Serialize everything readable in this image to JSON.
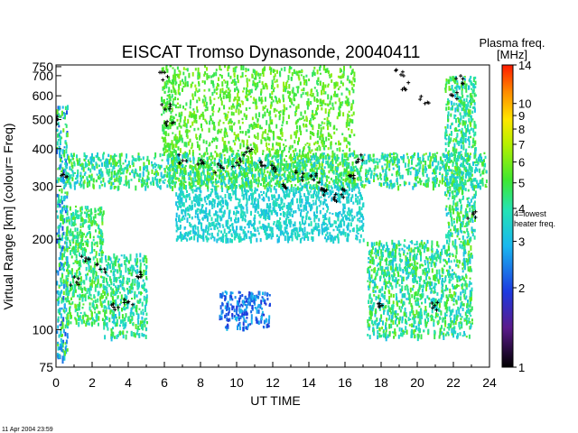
{
  "chart_data": {
    "type": "heatmap",
    "title": "EISCAT Tromso Dynasonde,  20040411",
    "xlabel": "UT TIME",
    "ylabel": "Virtual Range [km]   (colour= Freq)",
    "x_ticks": [
      0,
      2,
      4,
      6,
      8,
      10,
      12,
      14,
      16,
      18,
      20,
      22,
      24
    ],
    "xlim": [
      0,
      24
    ],
    "y_scale": "log",
    "ylim": [
      75,
      760
    ],
    "y_ticks": [
      75,
      100,
      200,
      300,
      400,
      500,
      600,
      700,
      750
    ],
    "colorbar": {
      "title_line1": "Plasma freq.",
      "title_line2": "[MHz]",
      "scale": "log",
      "range": [
        1,
        14
      ],
      "ticks": [
        1,
        2,
        3,
        4,
        5,
        6,
        7,
        8,
        9,
        10,
        14
      ],
      "annotation_line1": "4=lowest",
      "annotation_line2": "heater freq."
    },
    "grid": false,
    "echo_regions": [
      {
        "x": [
          0.0,
          0.6
        ],
        "y": [
          80,
          560
        ],
        "freq": [
          2.0,
          6.0
        ]
      },
      {
        "x": [
          0.5,
          2.6
        ],
        "y": [
          105,
          260
        ],
        "freq": [
          3.5,
          6.0
        ]
      },
      {
        "x": [
          2.6,
          5.0
        ],
        "y": [
          95,
          180
        ],
        "freq": [
          3.0,
          5.5
        ]
      },
      {
        "x": [
          0.4,
          6.6
        ],
        "y": [
          300,
          390
        ],
        "freq": [
          3.0,
          6.0
        ]
      },
      {
        "x": [
          5.8,
          6.6
        ],
        "y": [
          380,
          760
        ],
        "freq": [
          4.5,
          6.0
        ]
      },
      {
        "x": [
          6.6,
          16.5
        ],
        "y": [
          300,
          760
        ],
        "freq": [
          4.5,
          6.5
        ]
      },
      {
        "x": [
          6.6,
          17.0
        ],
        "y": [
          200,
          300
        ],
        "freq": [
          3.0,
          4.0
        ]
      },
      {
        "x": [
          6.2,
          23.8
        ],
        "y": [
          300,
          390
        ],
        "freq": [
          3.0,
          6.0
        ]
      },
      {
        "x": [
          9.0,
          11.8
        ],
        "y": [
          102,
          135
        ],
        "freq": [
          1.8,
          3.0
        ]
      },
      {
        "x": [
          17.2,
          23.0
        ],
        "y": [
          95,
          200
        ],
        "freq": [
          3.0,
          6.0
        ]
      },
      {
        "x": [
          21.5,
          23.2
        ],
        "y": [
          200,
          700
        ],
        "freq": [
          3.0,
          6.0
        ]
      }
    ],
    "trace_points": [
      [
        0.1,
        500
      ],
      [
        0.4,
        330
      ],
      [
        1.0,
        145
      ],
      [
        1.6,
        170
      ],
      [
        2.5,
        160
      ],
      [
        3.3,
        120
      ],
      [
        4.0,
        125
      ],
      [
        4.6,
        150
      ],
      [
        6.0,
        700
      ],
      [
        6.1,
        560
      ],
      [
        6.3,
        480
      ],
      [
        7.0,
        370
      ],
      [
        8.0,
        360
      ],
      [
        9.0,
        345
      ],
      [
        10.0,
        360
      ],
      [
        10.6,
        390
      ],
      [
        11.4,
        355
      ],
      [
        12.0,
        345
      ],
      [
        12.8,
        300
      ],
      [
        13.5,
        325
      ],
      [
        14.2,
        320
      ],
      [
        14.6,
        300
      ],
      [
        15.0,
        290
      ],
      [
        15.5,
        275
      ],
      [
        16.0,
        285
      ],
      [
        16.4,
        320
      ],
      [
        16.8,
        370
      ],
      [
        18.0,
        120
      ],
      [
        19.0,
        720
      ],
      [
        19.4,
        650
      ],
      [
        20.4,
        580
      ],
      [
        21.0,
        120
      ],
      [
        22.0,
        600
      ],
      [
        22.4,
        680
      ],
      [
        23.0,
        240
      ]
    ],
    "timestamp": "11 Apr 2004 23:59"
  }
}
